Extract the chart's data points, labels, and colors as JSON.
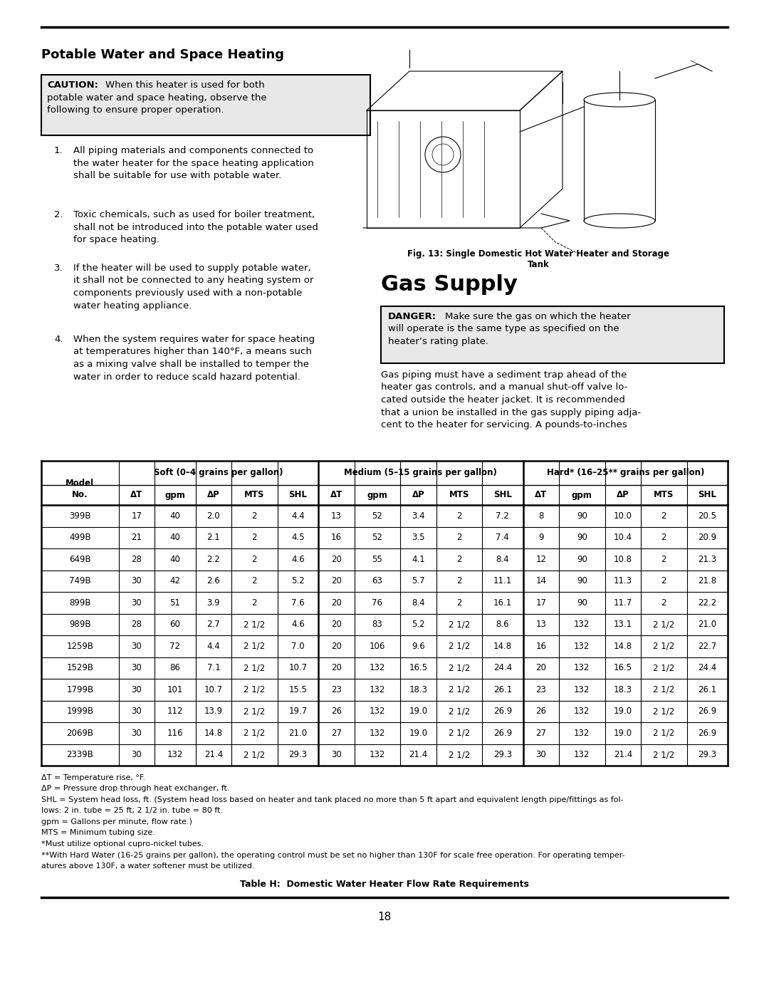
{
  "page_title": "Potable Water and Space Heating",
  "section2_title": "Gas Supply",
  "caution_label": "CAUTION:",
  "caution_lines": [
    "When this heater is used for both potable",
    "water and space heating, observe the",
    "following to ensure proper operation."
  ],
  "danger_label": "DANGER:",
  "danger_lines": [
    "Make sure the gas on which the heater",
    "will operate is the same type as specified on the",
    "heater’s rating plate."
  ],
  "item1_lines": [
    "All piping materials and components connected to",
    "the water heater for the space heating application",
    "shall be suitable for use with potable water."
  ],
  "item2_lines": [
    "Toxic chemicals, such as used for boiler treatment,",
    "shall not be introduced into the potable water used",
    "for space heating."
  ],
  "item3_lines": [
    "If the heater will be used to supply potable water,",
    "it shall not be connected to any heating system or",
    "components previously used with a non-potable",
    "water heating appliance."
  ],
  "item4_lines": [
    "When the system requires water for space heating",
    "at temperatures higher than 140°F, a means such",
    "as a mixing valve shall be installed to temper the",
    "water in order to reduce scald hazard potential."
  ],
  "gas_para_lines": [
    "Gas piping must have a sediment trap ahead of the",
    "heater gas controls, and a manual shut-off valve lo-",
    "cated outside the heater jacket. It is recommended",
    "that a union be installed in the gas supply piping adja-",
    "cent to the heater for servicing. A pounds-to-inches"
  ],
  "fig_caption_line1": "Fig. 13: Single Domestic Hot Water Heater and Storage",
  "fig_caption_line2": "Tank",
  "table_data": [
    [
      "399B",
      "17",
      "40",
      "2.0",
      "2",
      "4.4",
      "13",
      "52",
      "3.4",
      "2",
      "7.2",
      "8",
      "90",
      "10.0",
      "2",
      "20.5"
    ],
    [
      "499B",
      "21",
      "40",
      "2.1",
      "2",
      "4.5",
      "16",
      "52",
      "3.5",
      "2",
      "7.4",
      "9",
      "90",
      "10.4",
      "2",
      "20.9"
    ],
    [
      "649B",
      "28",
      "40",
      "2.2",
      "2",
      "4.6",
      "20",
      "55",
      "4.1",
      "2",
      "8.4",
      "12",
      "90",
      "10.8",
      "2",
      "21.3"
    ],
    [
      "749B",
      "30",
      "42",
      "2.6",
      "2",
      "5.2",
      "20",
      "63",
      "5.7",
      "2",
      "11.1",
      "14",
      "90",
      "11.3",
      "2",
      "21.8"
    ],
    [
      "899B",
      "30",
      "51",
      "3.9",
      "2",
      "7.6",
      "20",
      "76",
      "8.4",
      "2",
      "16.1",
      "17",
      "90",
      "11.7",
      "2",
      "22.2"
    ],
    [
      "989B",
      "28",
      "60",
      "2.7",
      "2 1/2",
      "4.6",
      "20",
      "83",
      "5.2",
      "2 1/2",
      "8.6",
      "13",
      "132",
      "13.1",
      "2 1/2",
      "21.0"
    ],
    [
      "1259B",
      "30",
      "72",
      "4.4",
      "2 1/2",
      "7.0",
      "20",
      "106",
      "9.6",
      "2 1/2",
      "14.8",
      "16",
      "132",
      "14.8",
      "2 1/2",
      "22.7"
    ],
    [
      "1529B",
      "30",
      "86",
      "7.1",
      "2 1/2",
      "10.7",
      "20",
      "132",
      "16.5",
      "2 1/2",
      "24.4",
      "20",
      "132",
      "16.5",
      "2 1/2",
      "24.4"
    ],
    [
      "1799B",
      "30",
      "101",
      "10.7",
      "2 1/2",
      "15.5",
      "23",
      "132",
      "18.3",
      "2 1/2",
      "26.1",
      "23",
      "132",
      "18.3",
      "2 1/2",
      "26.1"
    ],
    [
      "1999B",
      "30",
      "112",
      "13.9",
      "2 1/2",
      "19.7",
      "26",
      "132",
      "19.0",
      "2 1/2",
      "26.9",
      "26",
      "132",
      "19.0",
      "2 1/2",
      "26.9"
    ],
    [
      "2069B",
      "30",
      "116",
      "14.8",
      "2 1/2",
      "21.0",
      "27",
      "132",
      "19.0",
      "2 1/2",
      "26.9",
      "27",
      "132",
      "19.0",
      "2 1/2",
      "26.9"
    ],
    [
      "2339B",
      "30",
      "132",
      "21.4",
      "2 1/2",
      "29.3",
      "30",
      "132",
      "21.4",
      "2 1/2",
      "29.3",
      "30",
      "132",
      "21.4",
      "2 1/2",
      "29.3"
    ]
  ],
  "footnotes": [
    "ΔT = Temperature rise, °F.",
    "ΔP = Pressure drop through heat exchanger, ft.",
    "SHL = System head loss, ft. (System head loss based on heater and tank placed no more than 5 ft apart and equivalent length pipe/fittings as fol-",
    "lows: 2 in. tube = 25 ft; 2 1/2 in. tube = 80 ft.",
    "gpm = Gallons per minute, flow rate.)",
    "MTS = Minimum tubing size.",
    "*Must utilize optional cupro-nickel tubes.",
    "**With Hard Water (16-25 grains per gallon), the operating control must be set no higher than 130F for scale free operation. For operating temper-",
    "atures above 130F, a water softener must be utilized."
  ],
  "table_caption": "Table H:  Domestic Water Heater Flow Rate Requirements",
  "page_number": "18"
}
